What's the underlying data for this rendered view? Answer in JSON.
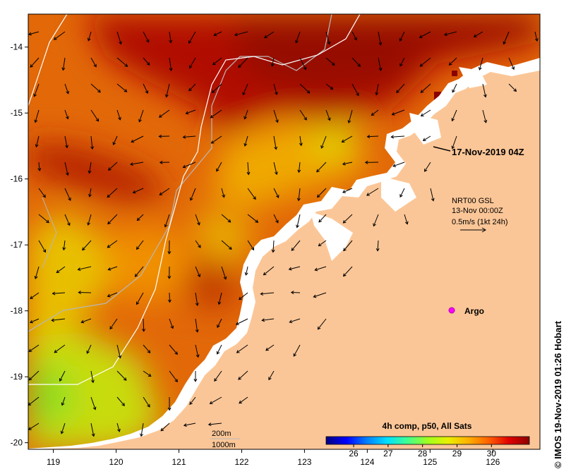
{
  "map": {
    "lon_range": [
      118.6,
      126.75
    ],
    "lat_range": [
      -20.1,
      -13.5
    ],
    "x_ticks": [
      119,
      120,
      121,
      122,
      123,
      124,
      125,
      126
    ],
    "y_ticks": [
      -14,
      -15,
      -16,
      -17,
      -18,
      -19,
      -20
    ],
    "x_tick_labels": [
      "119",
      "120",
      "121",
      "122",
      "123",
      "124",
      "125",
      "126"
    ],
    "y_tick_labels": [
      "-14",
      "-15",
      "-16",
      "-17",
      "-18",
      "-19",
      "-20"
    ],
    "land_color": "#fbc697",
    "frame_color": "#000000"
  },
  "annotations": {
    "date_label": "17-Nov-2019 04Z",
    "current_line1": "NRT00 GSL",
    "current_line2": "13-Nov 00:00Z",
    "current_line3": "0.5m/s (1kt 24h)",
    "argo_label": "Argo",
    "isobath_200": "200m",
    "isobath_1000": "1000m"
  },
  "colorbar": {
    "title": "4h comp, p50, All Sats",
    "ticks": [
      "26",
      "27",
      "28",
      "29",
      "30"
    ],
    "range": [
      25.2,
      31.1
    ],
    "colors": [
      "#00007f",
      "#0000ff",
      "#007fff",
      "#00e0ff",
      "#40ff90",
      "#a0ff20",
      "#e8f000",
      "#ffb000",
      "#ff6000",
      "#e00000",
      "#8b0000"
    ]
  },
  "credit": "© IMOS 19-Nov-2019 01:26 Hobart"
}
